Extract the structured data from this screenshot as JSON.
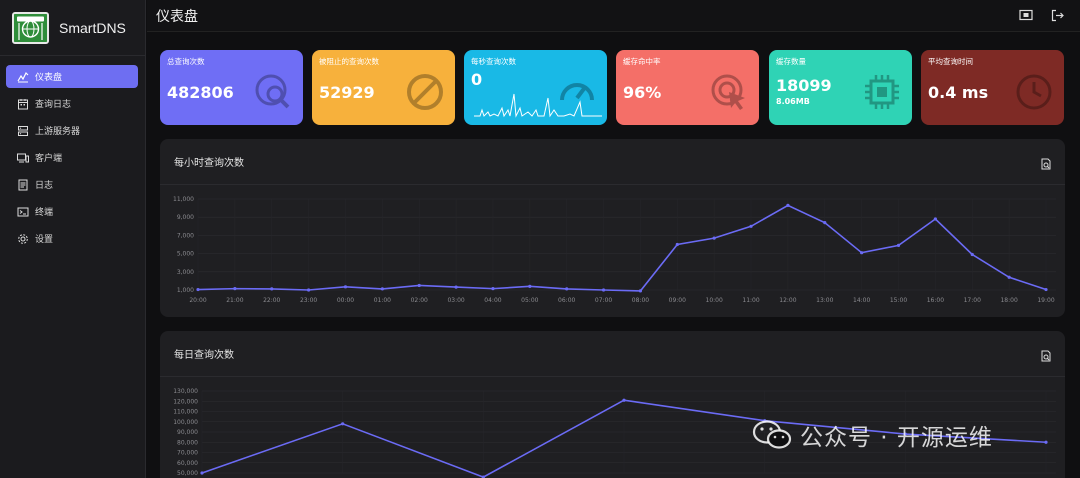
{
  "app": {
    "name": "SmartDNS",
    "page_title": "仪表盘"
  },
  "sidebar": {
    "items": [
      {
        "label": "仪表盘",
        "icon": "dashboard-icon",
        "active": true
      },
      {
        "label": "查询日志",
        "icon": "calendar-icon"
      },
      {
        "label": "上游服务器",
        "icon": "server-icon"
      },
      {
        "label": "客户端",
        "icon": "devices-icon"
      },
      {
        "label": "日志",
        "icon": "log-icon"
      },
      {
        "label": "终端",
        "icon": "terminal-icon"
      },
      {
        "label": "设置",
        "icon": "gear-icon"
      }
    ]
  },
  "topbar": {
    "icons": [
      "screen-toggle-icon",
      "logout-icon"
    ]
  },
  "stats": [
    {
      "label": "总查询次数",
      "value": "482806",
      "color": "#6f6ef5",
      "icon": "search-globe-icon"
    },
    {
      "label": "被阻止的查询次数",
      "value": "52929",
      "color": "#f7b13c",
      "icon": "block-icon"
    },
    {
      "label": "每秒查询次数",
      "value": "0",
      "color": "#19b9e6",
      "icon": "speedometer-icon"
    },
    {
      "label": "缓存命中率",
      "value": "96%",
      "color": "#f46f68",
      "icon": "target-click-icon"
    },
    {
      "label": "缓存数量",
      "value": "18099",
      "sub": "8.06MB",
      "color": "#2fd3b5",
      "icon": "chip-icon"
    },
    {
      "label": "平均查询时间",
      "value": "0.4 ms",
      "color": "#7e2a25",
      "icon": "clock-icon"
    }
  ],
  "hourly_panel": {
    "title": "每小时查询次数"
  },
  "daily_panel": {
    "title": "每日查询次数"
  },
  "chart_data": [
    {
      "type": "line",
      "title": "每小时查询次数",
      "categories": [
        "20:00",
        "21:00",
        "22:00",
        "23:00",
        "00:00",
        "01:00",
        "02:00",
        "03:00",
        "04:00",
        "05:00",
        "06:00",
        "07:00",
        "08:00",
        "09:00",
        "10:00",
        "11:00",
        "12:00",
        "13:00",
        "14:00",
        "15:00",
        "16:00",
        "17:00",
        "18:00",
        "19:00"
      ],
      "values": [
        1050,
        1150,
        1120,
        1000,
        1350,
        1120,
        1500,
        1320,
        1150,
        1400,
        1120,
        1000,
        900,
        6000,
        6700,
        8000,
        10300,
        8400,
        5100,
        5900,
        8800,
        4900,
        2400,
        1050
      ],
      "yticks": [
        "1,000",
        "3,000",
        "5,000",
        "7,000",
        "9,000",
        "11,000"
      ],
      "ylim": [
        1000,
        11000
      ],
      "color": "#6b6bf5"
    },
    {
      "type": "line",
      "title": "每日查询次数",
      "values": [
        50000,
        98000,
        46000,
        121000,
        101000,
        88000,
        80000
      ],
      "yticks": [
        "50,000",
        "60,000",
        "70,000",
        "80,000",
        "90,000",
        "100,000",
        "110,000",
        "120,000",
        "130,000"
      ],
      "ylim": [
        50000,
        130000
      ],
      "color": "#6b6bf5"
    }
  ],
  "watermark": {
    "text": "公众号 · 开源运维"
  }
}
